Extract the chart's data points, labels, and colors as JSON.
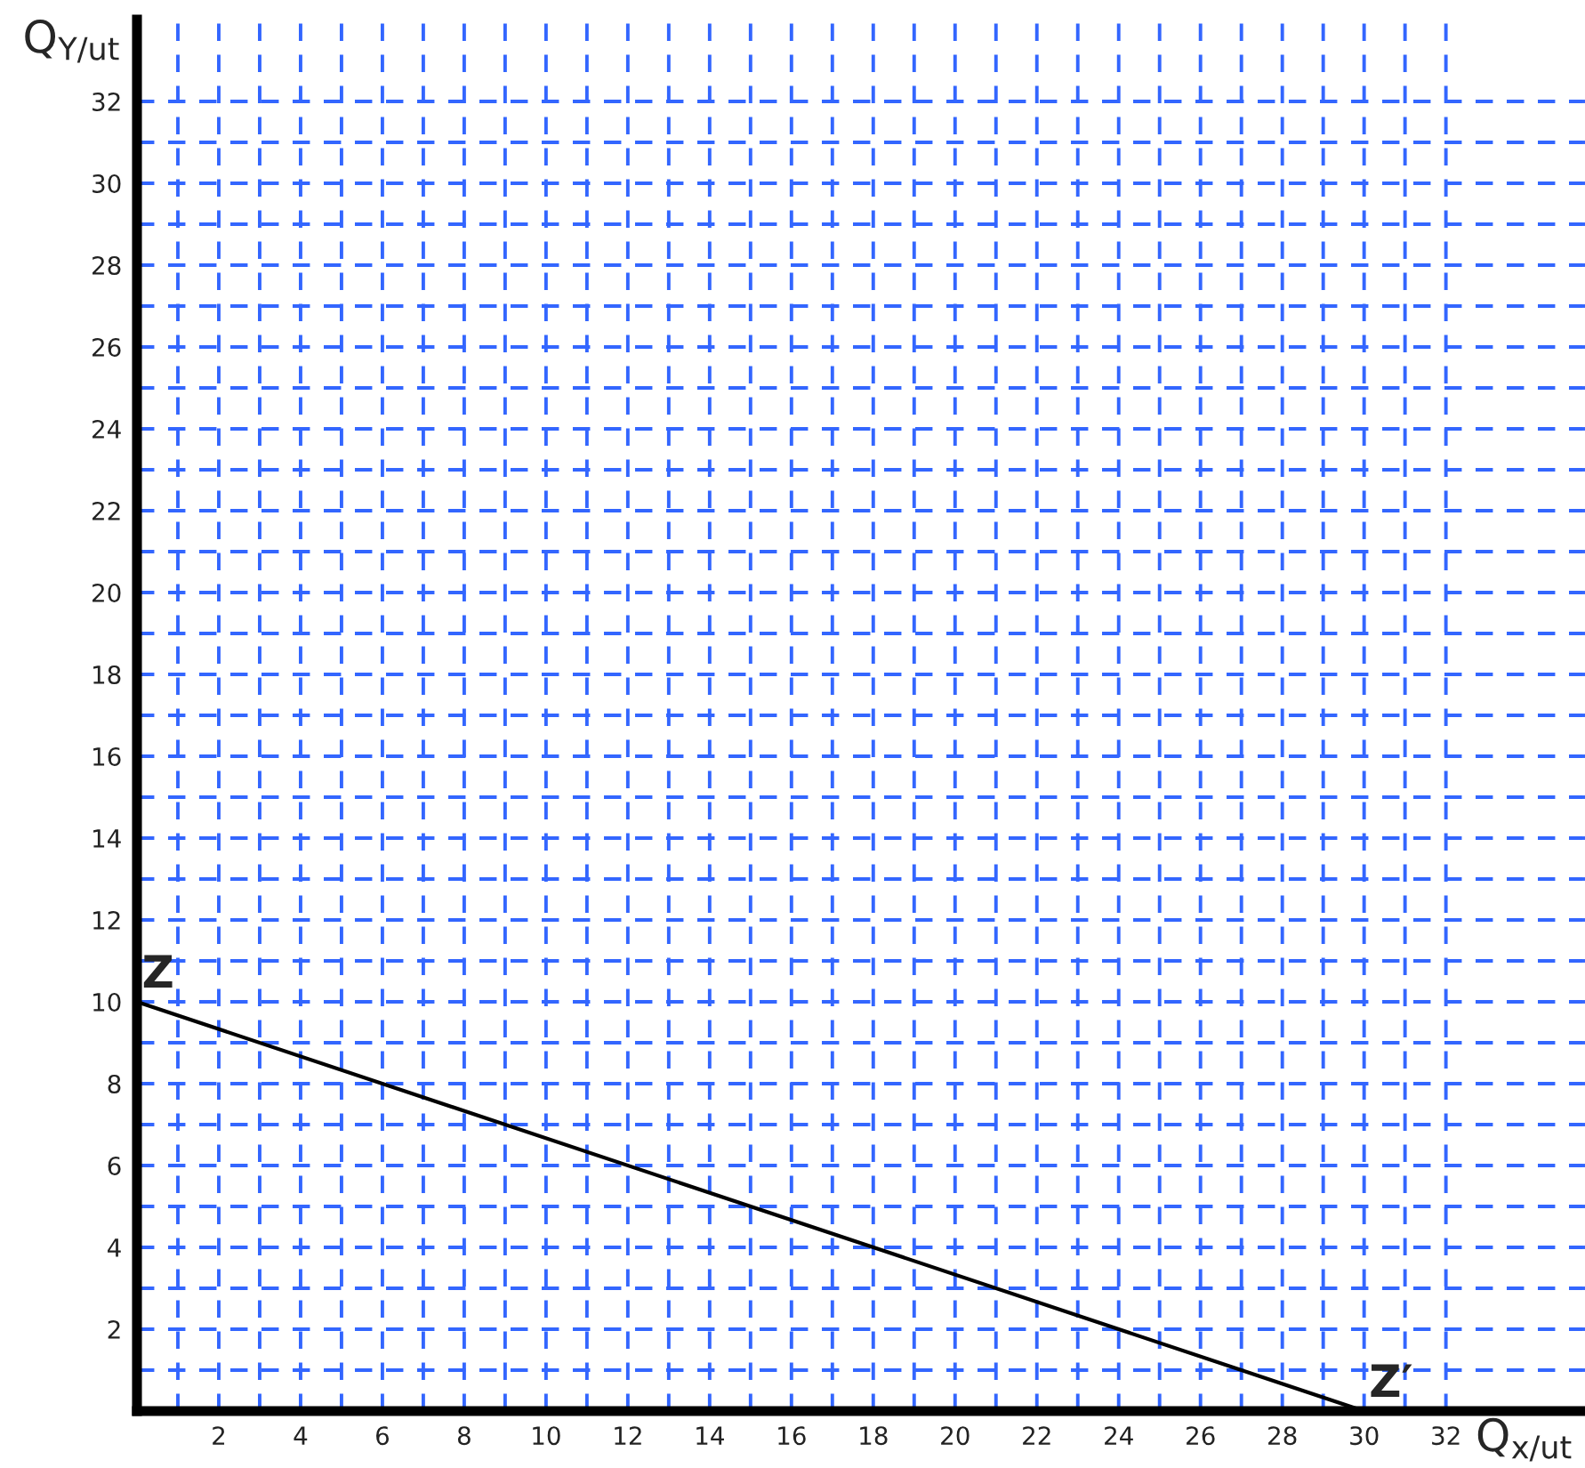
{
  "chart_data": {
    "type": "line",
    "xlabel": "Q$_{x/ut}$",
    "ylabel": "Q$_{Y/ut}$",
    "series": [
      {
        "color": "#000000",
        "x": [
          0,
          30
        ],
        "values": [
          10,
          0
        ]
      }
    ],
    "annotations": [
      {
        "text": "Z",
        "x": 0,
        "y": 10
      },
      {
        "text": "Z′",
        "x": 30,
        "y": 0
      }
    ],
    "xlim": [
      0,
      35.4
    ],
    "ylim": [
      0,
      34
    ],
    "xticks": [
      {
        "value": 1,
        "label": null
      },
      2,
      {
        "value": 3,
        "label": null
      },
      4,
      {
        "value": 5,
        "label": null
      },
      6,
      {
        "value": 7,
        "label": null
      },
      8,
      {
        "value": 9,
        "label": null
      },
      10,
      {
        "value": 11,
        "label": null
      },
      12,
      {
        "value": 13,
        "label": null
      },
      14,
      {
        "value": 15,
        "label": null
      },
      16,
      {
        "value": 17,
        "label": null
      },
      18,
      {
        "value": 19,
        "label": null
      },
      20,
      {
        "value": 21,
        "label": null
      },
      22,
      {
        "value": 23,
        "label": null
      },
      24,
      {
        "value": 25,
        "label": null
      },
      26,
      {
        "value": 27,
        "label": null
      },
      28,
      {
        "value": 29,
        "label": null
      },
      30,
      {
        "value": 31,
        "label": null
      },
      32
    ],
    "yticks": [
      {
        "value": 1,
        "label": null
      },
      2,
      {
        "value": 3,
        "label": null
      },
      4,
      {
        "value": 5,
        "label": null
      },
      6,
      {
        "value": 7,
        "label": null
      },
      8,
      {
        "value": 9,
        "label": null
      },
      10,
      {
        "value": 11,
        "label": null
      },
      12,
      {
        "value": 13,
        "label": null
      },
      14,
      {
        "value": 15,
        "label": null
      },
      16,
      {
        "value": 17,
        "label": null
      },
      18,
      {
        "value": 19,
        "label": null
      },
      20,
      {
        "value": 21,
        "label": null
      },
      22,
      {
        "value": 23,
        "label": null
      },
      24,
      {
        "value": 25,
        "label": null
      },
      26,
      {
        "value": 27,
        "label": null
      },
      28,
      {
        "value": 29,
        "label": null
      },
      30,
      {
        "value": 31,
        "label": null
      },
      32
    ],
    "grid": true
  }
}
